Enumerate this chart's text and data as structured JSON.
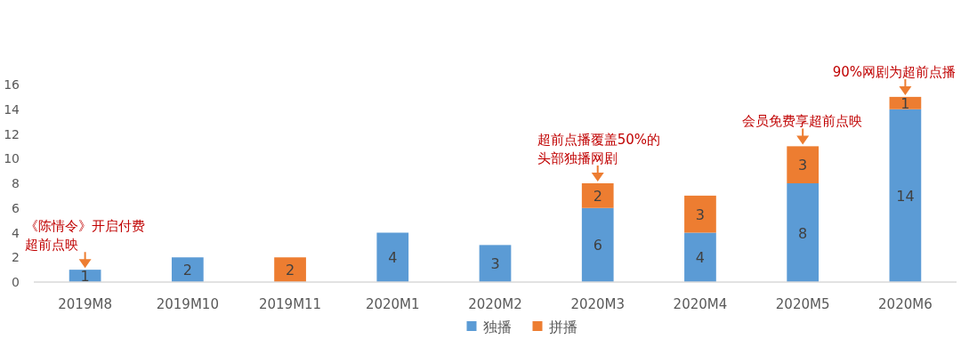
{
  "chart_data": {
    "type": "bar",
    "stacked": true,
    "categories": [
      "2019M8",
      "2019M10",
      "2019M11",
      "2020M1",
      "2020M2",
      "2020M3",
      "2020M4",
      "2020M5",
      "2020M6"
    ],
    "series": [
      {
        "name": "独播",
        "color": "#5b9bd5",
        "values": [
          1,
          2,
          null,
          4,
          3,
          6,
          4,
          8,
          14
        ]
      },
      {
        "name": "拼播",
        "color": "#ed7d31",
        "values": [
          null,
          null,
          2,
          null,
          null,
          2,
          3,
          3,
          1
        ]
      }
    ],
    "ylim": [
      0,
      16
    ],
    "yticks": [
      0,
      2,
      4,
      6,
      8,
      10,
      12,
      14,
      16
    ],
    "grid": false,
    "legend": "bottom",
    "data_labels": true,
    "annotations": [
      {
        "text": "《陈情令》开启付费超前点映",
        "x": "2019M8",
        "y": 1
      },
      {
        "text": "超前点播覆盖50%的头部独播网剧",
        "x": "2020M3",
        "y": 8
      },
      {
        "text": "会员免费享超前点映",
        "x": "2020M5",
        "y": 11
      },
      {
        "text": "90%网剧为超前点播",
        "x": "2020M6",
        "y": 15
      }
    ]
  }
}
